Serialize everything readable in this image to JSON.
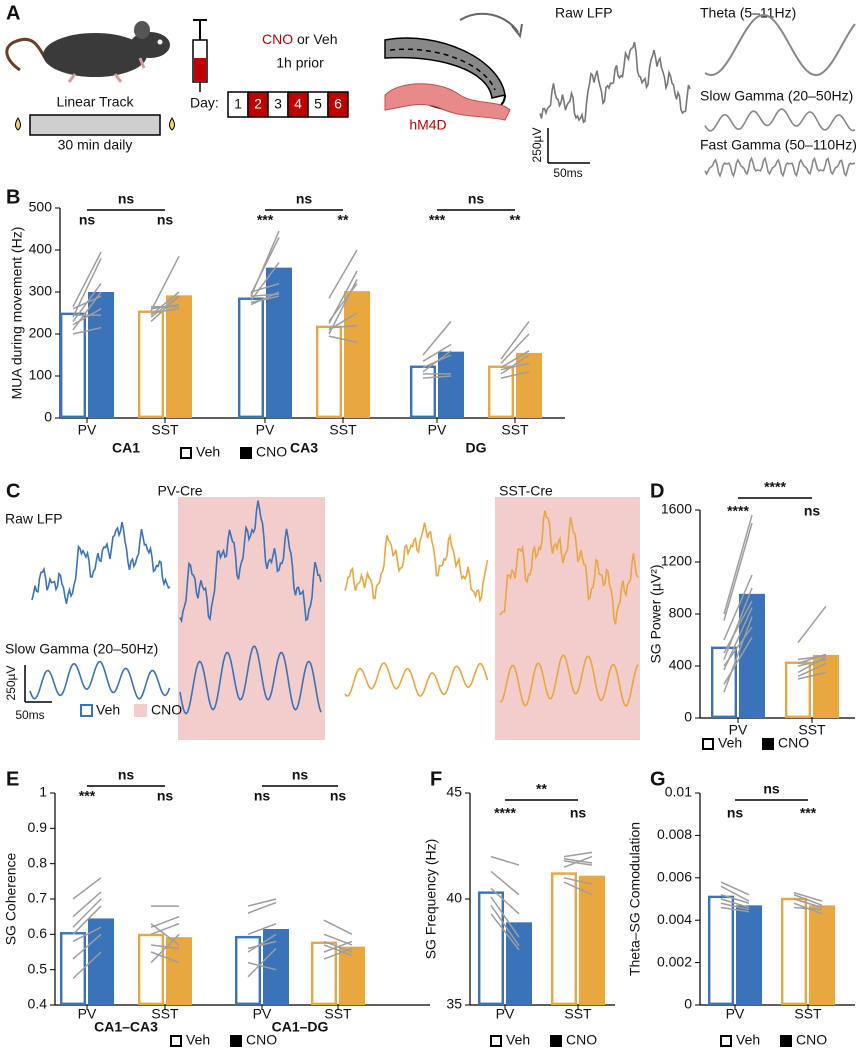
{
  "panel_a": {
    "letter": "A",
    "track_title": "Linear Track",
    "track_note": "30 min daily",
    "drug": "CNO",
    "drug_rest": " or Veh",
    "timing": "1h prior",
    "day_label": "Day:",
    "days": [
      "1",
      "2",
      "3",
      "4",
      "5",
      "6"
    ],
    "receptor": "hM4D",
    "raw_label": "Raw LFP",
    "theta_label": "Theta (5–11Hz)",
    "slow_label": "Slow Gamma (20–50Hz)",
    "fast_label": "Fast Gamma (50–110Hz)",
    "scale_v": "250µV",
    "scale_t": "50ms"
  },
  "panel_c": {
    "letter": "C",
    "pv_title": "PV-Cre",
    "sst_title": "SST-Cre",
    "raw_label": "Raw LFP",
    "slow_label": "Slow Gamma (20–50Hz)",
    "scale_v": "250µV",
    "scale_t": "50ms",
    "legend": [
      "Veh",
      "CNO"
    ]
  },
  "chart_data": [
    {
      "panel": "B",
      "type": "bar",
      "y_label": "MUA during movement (Hz)",
      "ylim": [
        0,
        500
      ],
      "yticks": [
        0,
        100,
        200,
        300,
        400,
        500
      ],
      "categories": [
        "PV",
        "SST",
        "PV",
        "SST",
        "PV",
        "SST"
      ],
      "category_colors": [
        "#3a73b9",
        "#e9a73f",
        "#3a73b9",
        "#e9a73f",
        "#3a73b9",
        "#e9a73f"
      ],
      "groups": [
        "CA1",
        "CA3",
        "DG"
      ],
      "series": [
        {
          "name": "Veh",
          "fill": "open",
          "values": [
            248,
            253,
            284,
            217,
            122,
            122
          ]
        },
        {
          "name": "CNO",
          "fill": "solid",
          "values": [
            300,
            292,
            358,
            302,
            158,
            155
          ]
        }
      ],
      "individual": [
        [
          [
            265,
            395
          ],
          [
            240,
            380
          ],
          [
            230,
            320
          ],
          [
            222,
            260
          ],
          [
            210,
            300
          ],
          [
            260,
            290
          ],
          [
            245,
            245
          ],
          [
            200,
            215
          ]
        ],
        [
          [
            255,
            385
          ],
          [
            245,
            300
          ],
          [
            250,
            260
          ],
          [
            260,
            270
          ],
          [
            240,
            290
          ],
          [
            265,
            265
          ],
          [
            230,
            290
          ]
        ],
        [
          [
            290,
            445
          ],
          [
            295,
            430
          ],
          [
            280,
            370
          ],
          [
            270,
            300
          ],
          [
            300,
            320
          ],
          [
            290,
            295
          ],
          [
            275,
            290
          ]
        ],
        [
          [
            285,
            400
          ],
          [
            225,
            350
          ],
          [
            230,
            320
          ],
          [
            210,
            250
          ],
          [
            215,
            220
          ],
          [
            200,
            330
          ],
          [
            195,
            180
          ]
        ],
        [
          [
            150,
            230
          ],
          [
            135,
            175
          ],
          [
            120,
            150
          ],
          [
            110,
            160
          ],
          [
            105,
            105
          ],
          [
            95,
            100
          ]
        ],
        [
          [
            140,
            230
          ],
          [
            130,
            200
          ],
          [
            120,
            160
          ],
          [
            115,
            130
          ],
          [
            105,
            150
          ],
          [
            95,
            110
          ]
        ]
      ],
      "stars": [
        "ns",
        "ns",
        "***",
        "**",
        "***",
        "**"
      ],
      "brackets": [
        "ns",
        "ns",
        "ns"
      ],
      "legend": "bottom"
    },
    {
      "panel": "D",
      "type": "bar",
      "y_label": "SG Power (µV²)",
      "ylim": [
        0,
        1600
      ],
      "yticks": [
        0,
        400,
        800,
        1200,
        1600
      ],
      "categories": [
        "PV",
        "SST"
      ],
      "category_colors": [
        "#3a73b9",
        "#e9a73f"
      ],
      "series": [
        {
          "name": "Veh",
          "fill": "open",
          "values": [
            540,
            425
          ]
        },
        {
          "name": "CNO",
          "fill": "solid",
          "values": [
            955,
            485
          ]
        }
      ],
      "individual": [
        [
          [
            800,
            1560
          ],
          [
            750,
            1500
          ],
          [
            600,
            1100
          ],
          [
            500,
            900
          ],
          [
            450,
            1000
          ],
          [
            370,
            850
          ],
          [
            400,
            700
          ],
          [
            260,
            620
          ],
          [
            200,
            780
          ]
        ],
        [
          [
            580,
            860
          ],
          [
            450,
            480
          ],
          [
            420,
            490
          ],
          [
            350,
            470
          ],
          [
            320,
            420
          ],
          [
            300,
            350
          ],
          [
            400,
            450
          ]
        ]
      ],
      "stars": [
        "****",
        "ns"
      ],
      "brackets": [
        "****"
      ],
      "legend": "bottom"
    },
    {
      "panel": "E",
      "type": "bar",
      "y_label": "SG Coherence",
      "ylim": [
        0.4,
        1
      ],
      "yticks": [
        0.4,
        0.5,
        0.6,
        0.7,
        0.8,
        0.9,
        1
      ],
      "categories": [
        "PV",
        "SST",
        "PV",
        "SST"
      ],
      "category_colors": [
        "#3a73b9",
        "#e9a73f",
        "#3a73b9",
        "#e9a73f"
      ],
      "groups": [
        "CA1–CA3",
        "CA1–DG"
      ],
      "series": [
        {
          "name": "Veh",
          "fill": "open",
          "values": [
            0.603,
            0.598,
            0.592,
            0.576
          ]
        },
        {
          "name": "CNO",
          "fill": "solid",
          "values": [
            0.645,
            0.592,
            0.615,
            0.565
          ]
        }
      ],
      "individual": [
        [
          [
            0.7,
            0.76
          ],
          [
            0.65,
            0.72
          ],
          [
            0.62,
            0.7
          ],
          [
            0.6,
            0.68
          ],
          [
            0.58,
            0.62
          ],
          [
            0.53,
            0.6
          ],
          [
            0.475,
            0.55
          ]
        ],
        [
          [
            0.68,
            0.68
          ],
          [
            0.62,
            0.65
          ],
          [
            0.6,
            0.63
          ],
          [
            0.57,
            0.56
          ],
          [
            0.55,
            0.52
          ],
          [
            0.63,
            0.57
          ],
          [
            0.52,
            0.6
          ]
        ],
        [
          [
            0.68,
            0.7
          ],
          [
            0.66,
            0.69
          ],
          [
            0.6,
            0.63
          ],
          [
            0.56,
            0.58
          ],
          [
            0.55,
            0.6
          ],
          [
            0.52,
            0.5
          ],
          [
            0.48,
            0.56
          ]
        ],
        [
          [
            0.64,
            0.6
          ],
          [
            0.6,
            0.57
          ],
          [
            0.58,
            0.55
          ],
          [
            0.57,
            0.54
          ],
          [
            0.55,
            0.58
          ],
          [
            0.53,
            0.56
          ]
        ]
      ],
      "stars": [
        "***",
        "ns",
        "ns",
        "ns"
      ],
      "brackets": [
        "ns",
        "ns"
      ],
      "legend": "bottom"
    },
    {
      "panel": "F",
      "type": "bar",
      "y_label": "SG Frequency (Hz)",
      "ylim": [
        35,
        45
      ],
      "yticks": [
        35,
        40,
        45
      ],
      "categories": [
        "PV",
        "SST"
      ],
      "category_colors": [
        "#3a73b9",
        "#e9a73f"
      ],
      "series": [
        {
          "name": "Veh",
          "fill": "open",
          "values": [
            40.3,
            41.2
          ]
        },
        {
          "name": "CNO",
          "fill": "solid",
          "values": [
            38.9,
            41.1
          ]
        }
      ],
      "individual": [
        [
          [
            42.0,
            41.6
          ],
          [
            41.3,
            40.2
          ],
          [
            40.5,
            39.3
          ],
          [
            40.1,
            38.2
          ],
          [
            39.7,
            37.8
          ],
          [
            39.3,
            37.6
          ]
        ],
        [
          [
            42.0,
            42.2
          ],
          [
            41.8,
            41.6
          ],
          [
            41.5,
            42.0
          ],
          [
            41.0,
            40.7
          ],
          [
            40.8,
            40.2
          ],
          [
            41.9,
            41.7
          ]
        ]
      ],
      "stars": [
        "****",
        "ns"
      ],
      "brackets": [
        "**"
      ],
      "legend": "bottom"
    },
    {
      "panel": "G",
      "type": "bar",
      "y_label": "Theta–SG Comodulation",
      "ylim": [
        0,
        0.01
      ],
      "yticks": [
        0,
        0.002,
        0.004,
        0.006,
        0.008,
        0.01
      ],
      "categories": [
        "PV",
        "SST"
      ],
      "category_colors": [
        "#3a73b9",
        "#e9a73f"
      ],
      "series": [
        {
          "name": "Veh",
          "fill": "open",
          "values": [
            0.0051,
            0.005
          ]
        },
        {
          "name": "CNO",
          "fill": "solid",
          "values": [
            0.0047,
            0.0047
          ]
        }
      ],
      "individual": [
        [
          [
            0.0058,
            0.0052
          ],
          [
            0.0056,
            0.0049
          ],
          [
            0.0052,
            0.0048
          ],
          [
            0.005,
            0.0046
          ],
          [
            0.0048,
            0.0045
          ],
          [
            0.0046,
            0.0044
          ]
        ],
        [
          [
            0.0053,
            0.0049
          ],
          [
            0.0052,
            0.0047
          ],
          [
            0.005,
            0.0046
          ],
          [
            0.0048,
            0.0043
          ],
          [
            0.0046,
            0.0045
          ]
        ]
      ],
      "stars": [
        "ns",
        "***"
      ],
      "brackets": [
        "ns"
      ],
      "legend": "bottom"
    }
  ]
}
